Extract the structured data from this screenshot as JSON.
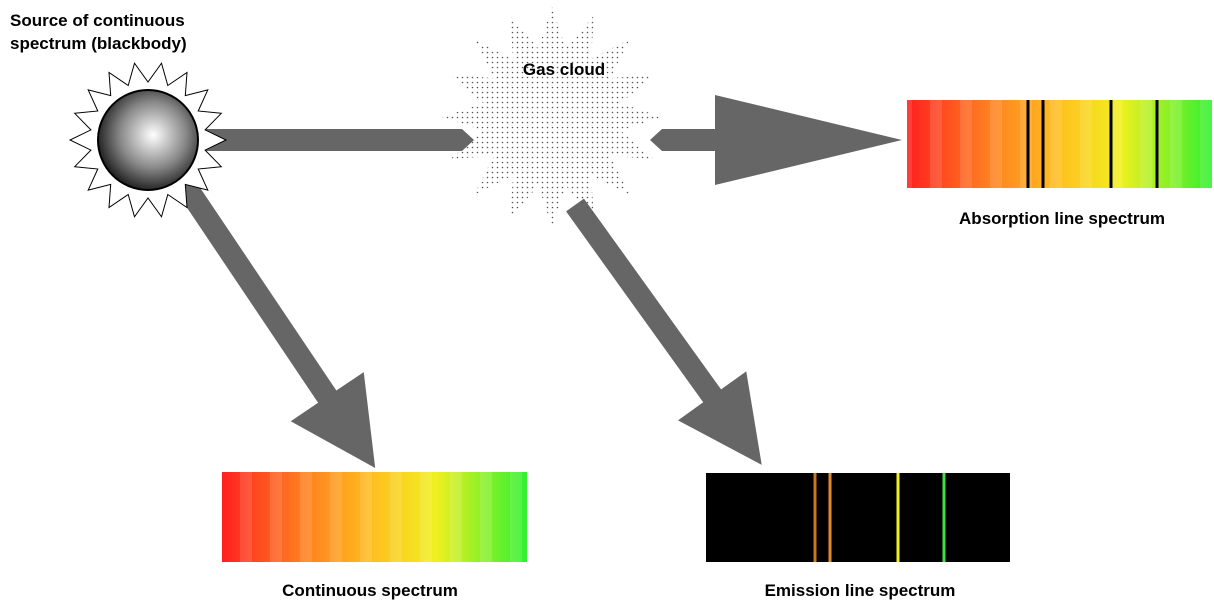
{
  "source": {
    "label_lines": [
      "Source of continuous",
      "spectrum (blackbody)"
    ]
  },
  "gas_cloud": {
    "label": "Gas cloud"
  },
  "spectra": {
    "absorption": {
      "label": "Absorption line spectrum"
    },
    "continuous": {
      "label": "Continuous spectrum"
    },
    "emission": {
      "label": "Emission line spectrum"
    }
  }
}
